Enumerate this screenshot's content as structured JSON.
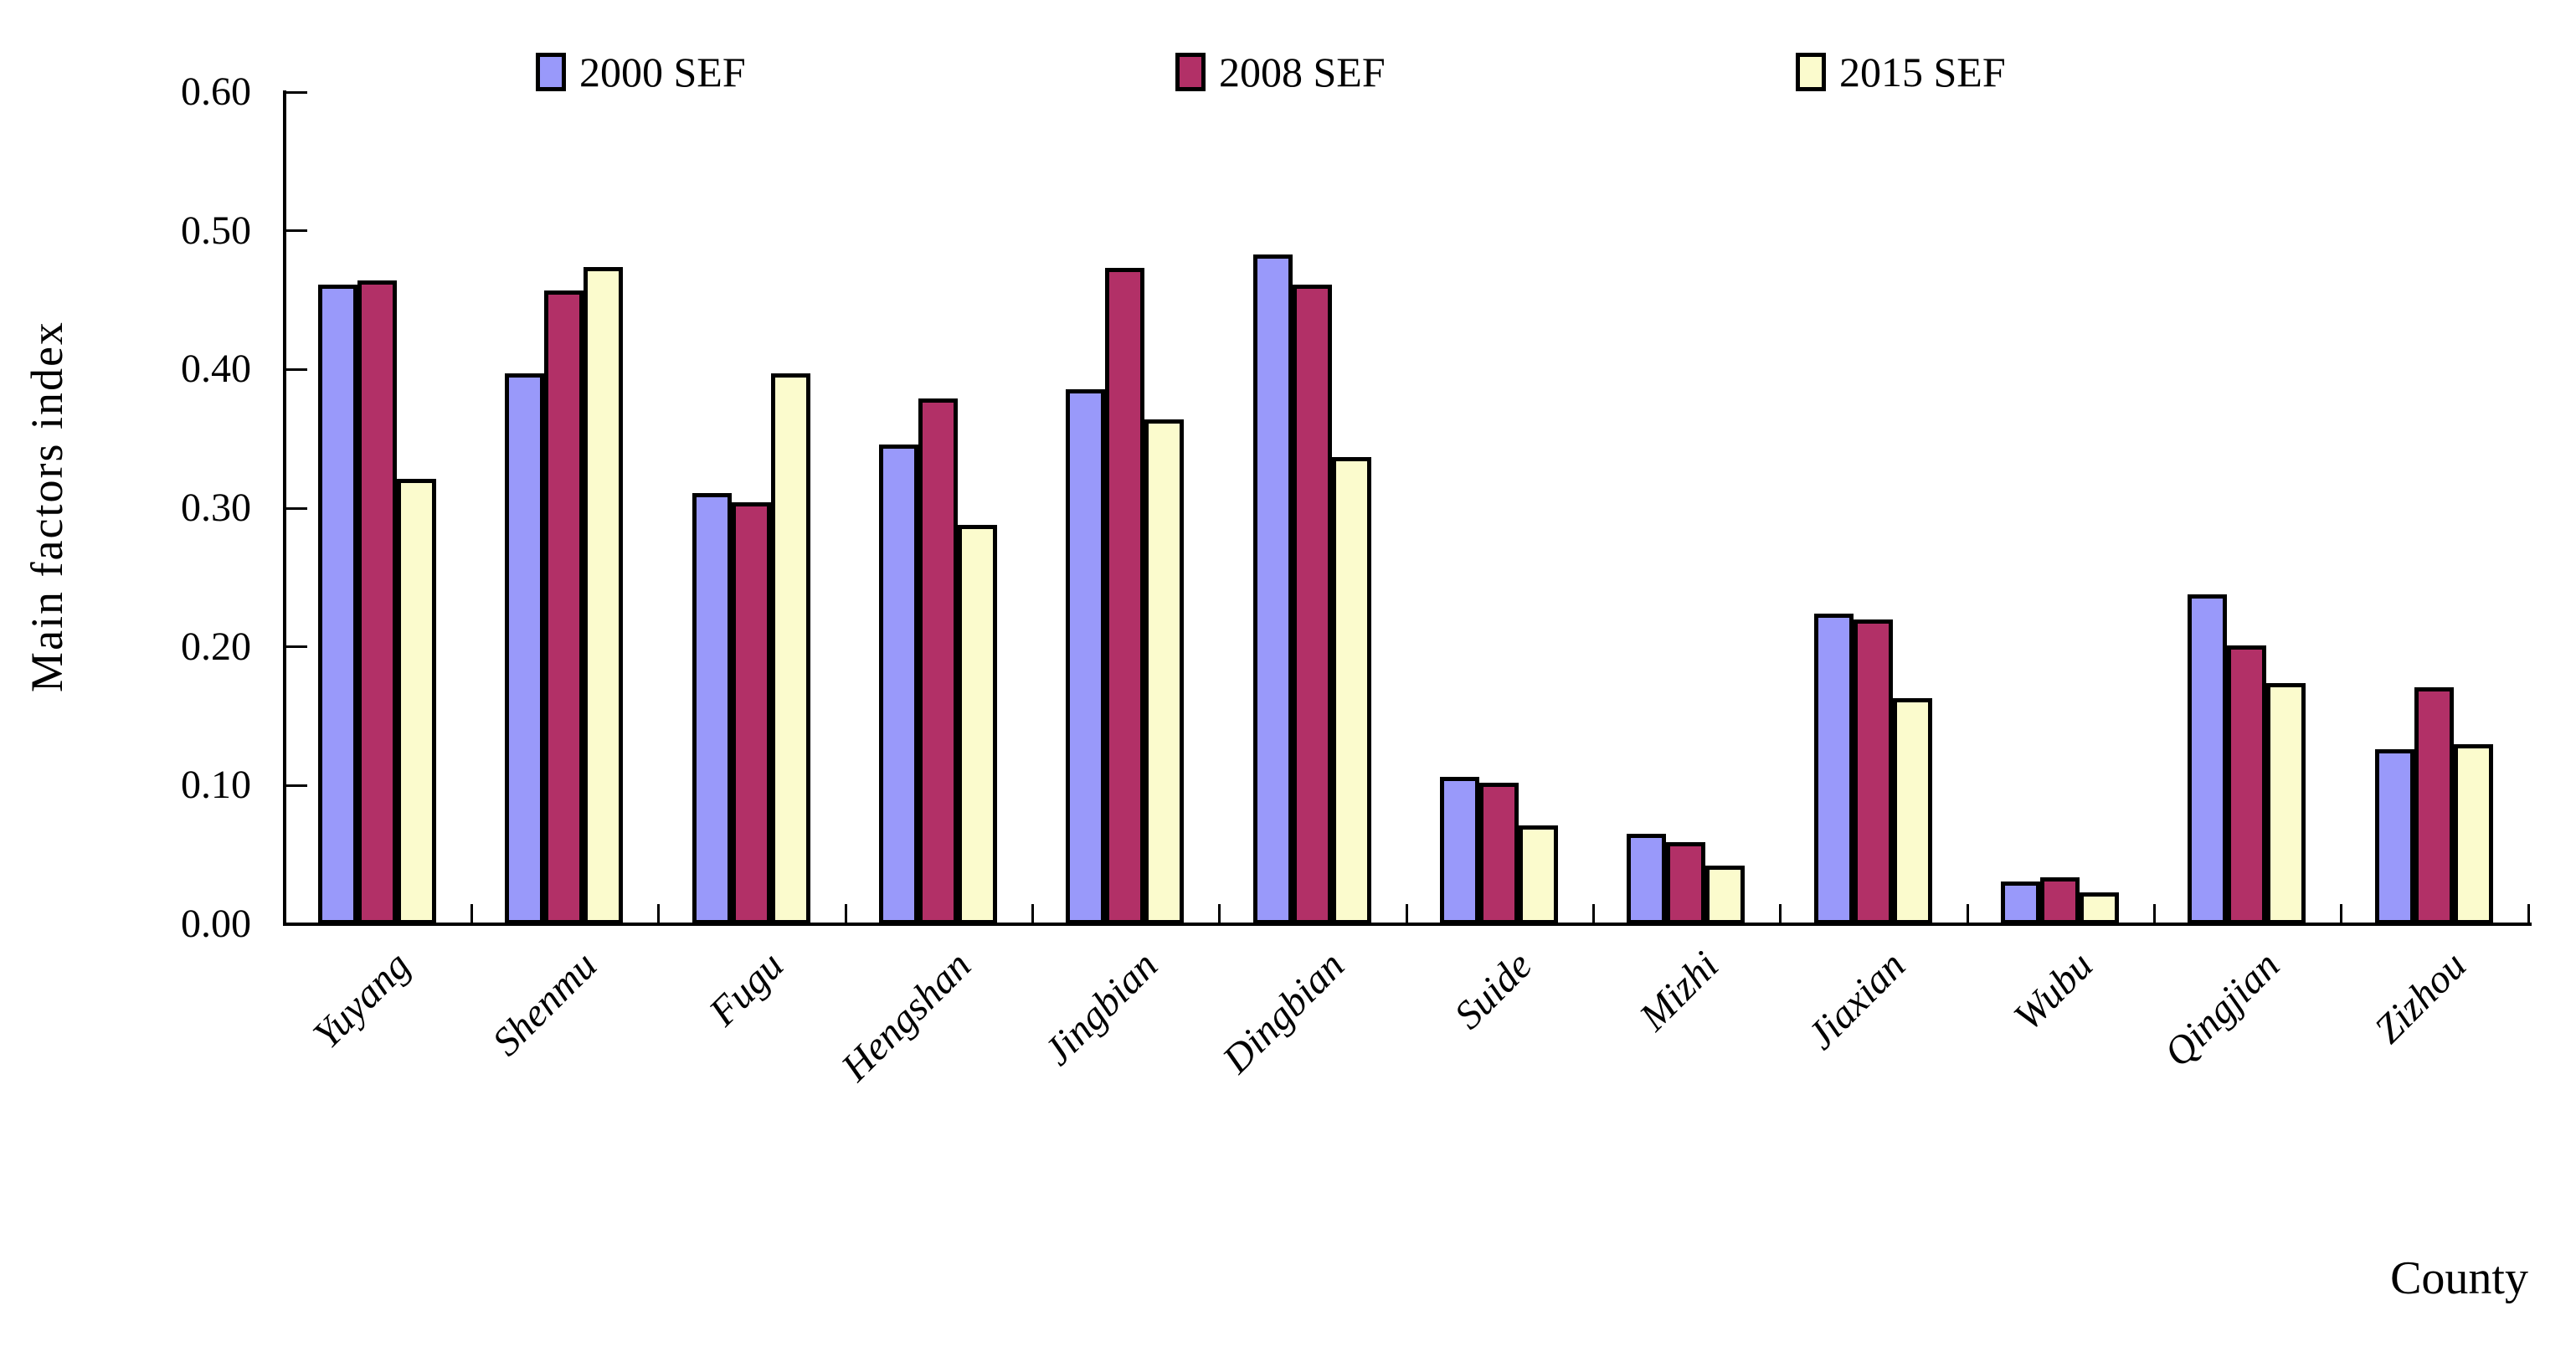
{
  "chart_data": {
    "type": "bar",
    "title": "",
    "categories": [
      "Yuyang",
      "Shenmu",
      "Fugu",
      "Hengshan",
      "Jingbian",
      "Dingbian",
      "Suide",
      "Mizhi",
      "Jiaxian",
      "Wubu",
      "Qingjian",
      "Zizhou"
    ],
    "series": [
      {
        "name": "2000 SEF",
        "color": "#9999FA",
        "values": [
          0.461,
          0.397,
          0.311,
          0.346,
          0.386,
          0.483,
          0.106,
          0.065,
          0.224,
          0.031,
          0.238,
          0.126
        ]
      },
      {
        "name": "2008 SEF",
        "color": "#B23067",
        "values": [
          0.464,
          0.457,
          0.304,
          0.379,
          0.473,
          0.461,
          0.102,
          0.059,
          0.22,
          0.034,
          0.201,
          0.171
        ]
      },
      {
        "name": "2015 SEF",
        "color": "#FBFBCD",
        "values": [
          0.321,
          0.474,
          0.397,
          0.288,
          0.364,
          0.337,
          0.071,
          0.042,
          0.163,
          0.023,
          0.174,
          0.13
        ]
      }
    ],
    "xlabel": "County",
    "ylabel": "Main factors index",
    "ylim": [
      0,
      0.6
    ],
    "ytick_step": 0.1,
    "ytick_labels": [
      "0.00",
      "0.10",
      "0.20",
      "0.30",
      "0.40",
      "0.50",
      "0.60"
    ],
    "legend_position": "top",
    "grid": false,
    "axis_color": "#000000",
    "background_color": "#FFFFFF"
  }
}
